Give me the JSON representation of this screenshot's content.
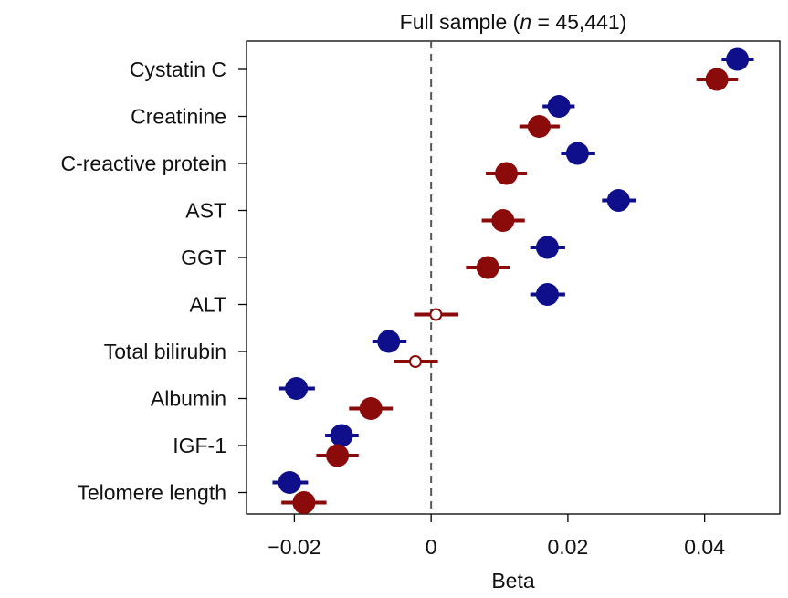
{
  "chart_data": {
    "type": "scatter",
    "title": "Full sample (n = 45,441)",
    "title_parts": {
      "prefix": "Full sample (",
      "italic": "n",
      "suffix": " = 45,441)"
    },
    "xlabel": "Beta",
    "ylabel": "",
    "xlim": [
      -0.027,
      0.051
    ],
    "x_ticks": [
      -0.02,
      0,
      0.02,
      0.04
    ],
    "x_tick_labels": [
      "−0.02",
      "0",
      "0.02",
      "0.04"
    ],
    "reference_line": {
      "x": 0,
      "style": "dashed"
    },
    "grid": false,
    "legend": false,
    "categories": [
      "Cystatin C",
      "Creatinine",
      "C-reactive protein",
      "AST",
      "GGT",
      "ALT",
      "Total bilirubin",
      "Albumin",
      "IGF-1",
      "Telomere length"
    ],
    "series": [
      {
        "color": "#0f0f8c",
        "points": [
          {
            "category": "Cystatin C",
            "beta": 0.0448,
            "ci": [
              0.0425,
              0.0472
            ],
            "significant": true
          },
          {
            "category": "Creatinine",
            "beta": 0.0187,
            "ci": [
              0.0163,
              0.021
            ],
            "significant": true
          },
          {
            "category": "C-reactive protein",
            "beta": 0.0214,
            "ci": [
              0.019,
              0.024
            ],
            "significant": true
          },
          {
            "category": "AST",
            "beta": 0.0274,
            "ci": [
              0.025,
              0.03
            ],
            "significant": true
          },
          {
            "category": "GGT",
            "beta": 0.017,
            "ci": [
              0.0145,
              0.0196
            ],
            "significant": true
          },
          {
            "category": "ALT",
            "beta": 0.017,
            "ci": [
              0.0145,
              0.0196
            ],
            "significant": true
          },
          {
            "category": "Total bilirubin",
            "beta": -0.0062,
            "ci": [
              -0.0086,
              -0.0036
            ],
            "significant": true
          },
          {
            "category": "Albumin",
            "beta": -0.0197,
            "ci": [
              -0.0222,
              -0.017
            ],
            "significant": true
          },
          {
            "category": "IGF-1",
            "beta": -0.0131,
            "ci": [
              -0.0155,
              -0.0106
            ],
            "significant": true
          },
          {
            "category": "Telomere length",
            "beta": -0.0207,
            "ci": [
              -0.0232,
              -0.018
            ],
            "significant": true
          }
        ]
      },
      {
        "color": "#8b0a0a",
        "points": [
          {
            "category": "Cystatin C",
            "beta": 0.0418,
            "ci": [
              0.0388,
              0.0449
            ],
            "significant": true
          },
          {
            "category": "Creatinine",
            "beta": 0.0158,
            "ci": [
              0.0129,
              0.0188
            ],
            "significant": true
          },
          {
            "category": "C-reactive protein",
            "beta": 0.011,
            "ci": [
              0.008,
              0.014
            ],
            "significant": true
          },
          {
            "category": "AST",
            "beta": 0.0105,
            "ci": [
              0.0074,
              0.0137
            ],
            "significant": true
          },
          {
            "category": "GGT",
            "beta": 0.0083,
            "ci": [
              0.0051,
              0.0115
            ],
            "significant": true
          },
          {
            "category": "ALT",
            "beta": 0.0007,
            "ci": [
              -0.0025,
              0.004
            ],
            "significant": false
          },
          {
            "category": "Total bilirubin",
            "beta": -0.0023,
            "ci": [
              -0.0055,
              0.001
            ],
            "significant": false
          },
          {
            "category": "Albumin",
            "beta": -0.0088,
            "ci": [
              -0.012,
              -0.0056
            ],
            "significant": true
          },
          {
            "category": "IGF-1",
            "beta": -0.0137,
            "ci": [
              -0.0168,
              -0.0106
            ],
            "significant": true
          },
          {
            "category": "Telomere length",
            "beta": -0.0186,
            "ci": [
              -0.0219,
              -0.0153
            ],
            "significant": true
          }
        ]
      }
    ]
  }
}
